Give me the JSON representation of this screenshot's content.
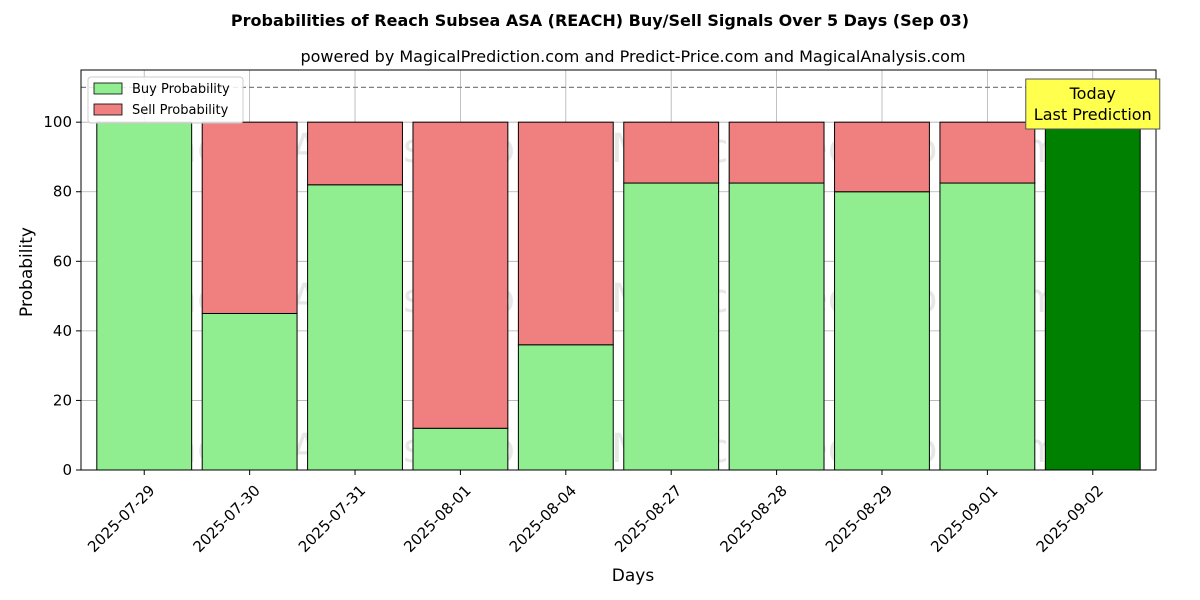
{
  "chart_data": {
    "type": "bar",
    "title": "Probabilities of Reach Subsea ASA (REACH) Buy/Sell Signals Over 5 Days (Sep 03)",
    "subtitle": "powered by MagicalPrediction.com and Predict-Price.com and MagicalAnalysis.com",
    "xlabel": "Days",
    "ylabel": "Probability",
    "ylim": [
      0,
      115
    ],
    "yticks": [
      0,
      20,
      40,
      60,
      80,
      100
    ],
    "grid": true,
    "stacked": true,
    "reference_line": 110,
    "categories": [
      "2025-07-29",
      "2025-07-30",
      "2025-07-31",
      "2025-08-01",
      "2025-08-04",
      "2025-08-27",
      "2025-08-28",
      "2025-08-29",
      "2025-09-01",
      "2025-09-02"
    ],
    "series": [
      {
        "name": "Buy Probability",
        "color": "#90ee90",
        "values": [
          100,
          45,
          82,
          12,
          36,
          82.5,
          82.5,
          80,
          82.5,
          100
        ]
      },
      {
        "name": "Sell Probability",
        "color": "#f08080",
        "values": [
          0,
          55,
          18,
          88,
          64,
          17.5,
          17.5,
          20,
          17.5,
          0
        ]
      }
    ],
    "highlight": {
      "category": "2025-09-02",
      "color": "#008000"
    },
    "legend_position": "top-left",
    "annotation": {
      "line1": "Today",
      "line2": "Last Prediction",
      "background": "#ffff4d"
    },
    "watermarks": [
      "MagicalAnalysis.com",
      "MagicalPrediction.com",
      "MagicalAnalysis.com",
      "MagicalPrediction.com",
      "MagicalAnalysis.com",
      "MagicalPrediction.com"
    ]
  }
}
